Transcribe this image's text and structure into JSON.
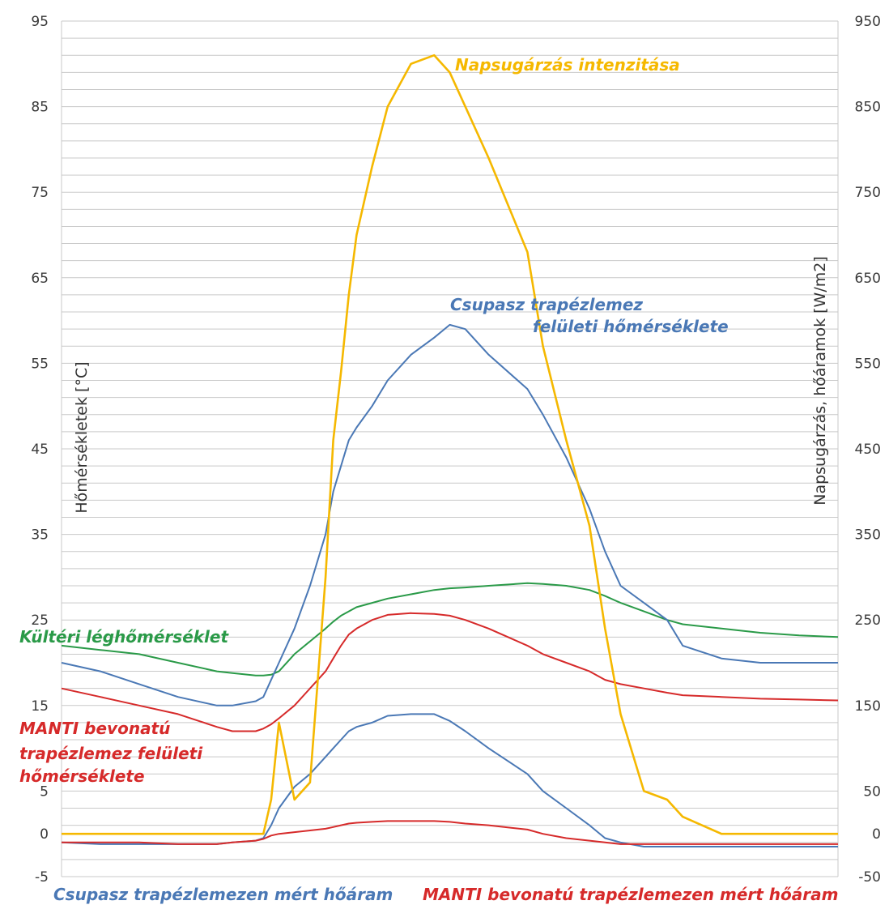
{
  "chart_data": {
    "type": "line",
    "title": "",
    "xlabel": "",
    "ylabel": "Hőmérsékletek [°C]",
    "y2label": "Napsugárzás, hőáramok [W/m2]",
    "ylim": [
      -5,
      95
    ],
    "y2lim": [
      -50,
      950
    ],
    "grid": true,
    "y_ticks": [
      "95",
      "85",
      "75",
      "65",
      "55",
      "45",
      "35",
      "25",
      "15",
      "5",
      "0",
      "-5"
    ],
    "y2_ticks": [
      "950",
      "850",
      "750",
      "650",
      "550",
      "450",
      "350",
      "250",
      "150",
      "50",
      "0",
      "-50"
    ],
    "x": [
      0,
      5,
      10,
      15,
      20,
      22,
      25,
      26,
      27,
      28,
      30,
      32,
      34,
      35,
      36,
      37,
      38,
      40,
      42,
      45,
      48,
      50,
      52,
      55,
      60,
      62,
      65,
      68,
      70,
      72,
      75,
      78,
      80,
      85,
      90,
      95,
      100
    ],
    "series": [
      {
        "name": "Napsugárzás intenzitása",
        "axis": "right",
        "color": "#f5b800",
        "values": [
          0,
          0,
          0,
          0,
          0,
          0,
          0,
          0,
          40,
          130,
          40,
          60,
          300,
          460,
          540,
          630,
          700,
          780,
          850,
          900,
          910,
          890,
          850,
          790,
          680,
          570,
          460,
          360,
          240,
          140,
          50,
          40,
          20,
          0,
          0,
          0,
          0
        ]
      },
      {
        "name": "Csupasz trapézlemez felületi hőmérséklete",
        "axis": "left",
        "color": "#4a78b5",
        "values": [
          20,
          19,
          17.5,
          16,
          15,
          15,
          15.5,
          16,
          18,
          20,
          24,
          29,
          35,
          40,
          43,
          46,
          47.5,
          50,
          53,
          56,
          58,
          59.5,
          59,
          56,
          52,
          49,
          44,
          38,
          33,
          29,
          27,
          25,
          22,
          20.5,
          20,
          20,
          20
        ]
      },
      {
        "name": "Kültéri léghőmérséklet",
        "axis": "left",
        "color": "#2a9a48",
        "values": [
          22,
          21.5,
          21,
          20,
          19,
          18.8,
          18.5,
          18.5,
          18.6,
          19,
          21,
          22.5,
          24,
          24.8,
          25.5,
          26,
          26.5,
          27,
          27.5,
          28,
          28.5,
          28.7,
          28.8,
          29,
          29.3,
          29.2,
          29,
          28.5,
          27.8,
          27,
          26,
          25,
          24.5,
          24,
          23.5,
          23.2,
          23
        ]
      },
      {
        "name": "MANTI bevonatú trapézlemez felületi hőmérséklete",
        "axis": "left",
        "color": "#d62a2a",
        "values": [
          17,
          16,
          15,
          14,
          12.5,
          12,
          12,
          12.3,
          12.8,
          13.5,
          15,
          17,
          19,
          20.5,
          22,
          23.3,
          24,
          25,
          25.6,
          25.8,
          25.7,
          25.5,
          25,
          24,
          22,
          21,
          20,
          19,
          18,
          17.5,
          17,
          16.5,
          16.2,
          16,
          15.8,
          15.7,
          15.6
        ]
      },
      {
        "name": "Csupasz trapézlemezen mért hőáram",
        "axis": "right",
        "color": "#4a78b5",
        "values": [
          -10,
          -12,
          -12,
          -12,
          -12,
          -10,
          -8,
          -5,
          10,
          30,
          55,
          70,
          90,
          100,
          110,
          120,
          125,
          130,
          138,
          140,
          140,
          132,
          120,
          100,
          70,
          50,
          30,
          10,
          -5,
          -10,
          -15,
          -15,
          -15,
          -15,
          -15,
          -15,
          -15
        ]
      },
      {
        "name": "MANTI bevonatú trapézlemezen mért hőáram",
        "axis": "right",
        "color": "#d62a2a",
        "values": [
          -10,
          -10,
          -10,
          -12,
          -12,
          -10,
          -8,
          -6,
          -2,
          0,
          2,
          4,
          6,
          8,
          10,
          12,
          13,
          14,
          15,
          15,
          15,
          14,
          12,
          10,
          5,
          0,
          -5,
          -8,
          -10,
          -12,
          -12,
          -12,
          -12,
          -12,
          -12,
          -12,
          -12
        ]
      }
    ],
    "labels": {
      "solar": "Napsugárzás intenzitása",
      "bare_temp_line1": "Csupasz trapézlemez",
      "bare_temp_line2": "felületi hőmérséklete",
      "outdoor": "Kültéri léghőmérséklet",
      "manti_temp_line1": "MANTI bevonatú",
      "manti_temp_line2": "trapézlemez felületi",
      "manti_temp_line3": "hőmérséklete",
      "bare_flux": "Csupasz trapézlemezen mért hőáram",
      "manti_flux": "MANTI bevonatú trapézlemezen mért hőáram"
    }
  }
}
